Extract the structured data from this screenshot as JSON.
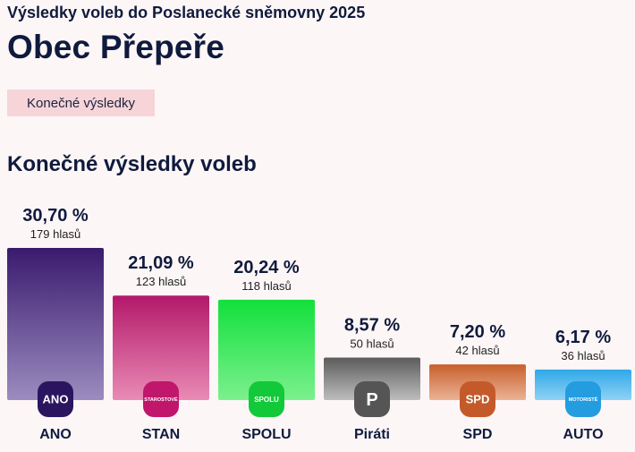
{
  "header": {
    "subtitle": "Výsledky voleb do Poslanecké sněmovny 2025",
    "title": "Obec Přepeře"
  },
  "badge": {
    "label": "Konečné výsledky"
  },
  "section": {
    "title": "Konečné výsledky voleb"
  },
  "colors": {
    "background": "#fdf6f7",
    "badge": "#f6d4d8",
    "text": "#0f1b3d"
  },
  "chart_data": {
    "type": "bar",
    "title": "Konečné výsledky voleb",
    "categories": [
      "ANO",
      "STAN",
      "SPOLU",
      "Piráti",
      "SPD",
      "AUTO"
    ],
    "values": [
      30.7,
      21.09,
      20.24,
      8.57,
      7.2,
      6.17
    ],
    "value_labels": [
      "30,70 %",
      "21,09 %",
      "20,24 %",
      "8,57 %",
      "7,20 %",
      "6,17 %"
    ],
    "votes_labels": [
      "179 hlasů",
      "123 hlasů",
      "118 hlasů",
      "50 hlasů",
      "42 hlasů",
      "36 hlasů"
    ],
    "parties": [
      {
        "name": "ANO",
        "logo_text": "ANO",
        "logo_icon": "ano-logo-icon",
        "color_top": "#3a1a6e",
        "color_bottom": "#9b8cbf",
        "logo_bg": "#2c1560"
      },
      {
        "name": "STAN",
        "logo_text": "STAROSTOVÉ",
        "logo_icon": "stan-logo-icon",
        "color_top": "#b3186a",
        "color_bottom": "#e98bb5",
        "logo_bg": "#c0166b"
      },
      {
        "name": "SPOLU",
        "logo_text": "SPOLU",
        "logo_icon": "spolu-logo-icon",
        "color_top": "#12e03c",
        "color_bottom": "#7cf08e",
        "logo_bg": "#12c93a"
      },
      {
        "name": "Piráti",
        "logo_text": "P",
        "logo_icon": "pirati-logo-icon",
        "color_top": "#5c5c5c",
        "color_bottom": "#bdbdbd",
        "logo_bg": "#555555"
      },
      {
        "name": "SPD",
        "logo_text": "SPD",
        "logo_icon": "spd-logo-icon",
        "color_top": "#c8602c",
        "color_bottom": "#eab395",
        "logo_bg": "#c45a2a"
      },
      {
        "name": "AUTO",
        "logo_text": "MOTORISTÉ",
        "logo_icon": "auto-logo-icon",
        "color_top": "#2fa8e8",
        "color_bottom": "#8fd2f5",
        "logo_bg": "#239de0"
      }
    ],
    "ylim": [
      0,
      30.7
    ],
    "grid": false,
    "legend": "none"
  }
}
